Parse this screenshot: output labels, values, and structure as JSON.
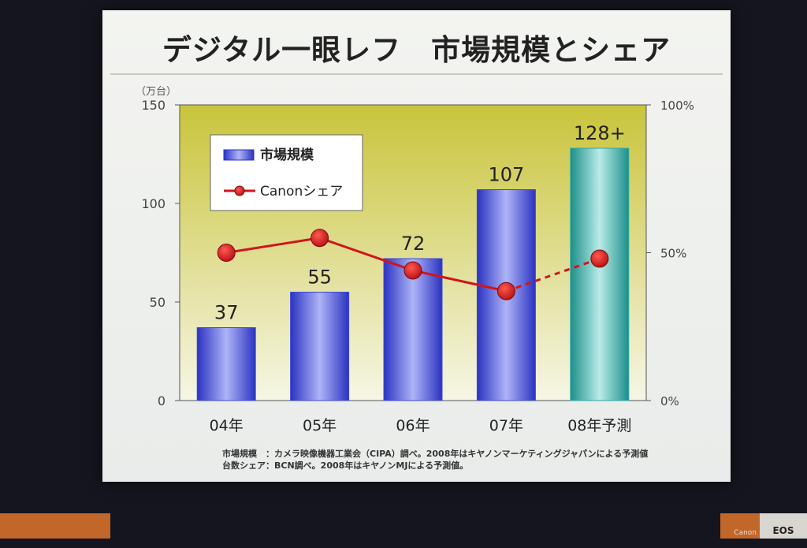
{
  "slide": {
    "title": "デジタル一眼レフ　市場規模とシェア",
    "notes": [
      "市場規模　：カメラ映像機器工業会（CIPA）調べ。2008年はキヤノンマーケティングジャパンによる予測値",
      "台数シェア：BCN調べ。2008年はキヤノンMJによる予測値。"
    ]
  },
  "booth": {
    "brand": "Canon",
    "logo": "EOS"
  },
  "chart_data": {
    "type": "bar",
    "categories": [
      "04年",
      "05年",
      "06年",
      "07年",
      "08年予測"
    ],
    "series": [
      {
        "name": "市場規模",
        "type": "bar",
        "axis": "left",
        "values": [
          37,
          55,
          72,
          107,
          128
        ],
        "data_labels": [
          "37",
          "55",
          "72",
          "107",
          "128+"
        ],
        "colors": [
          "#4048d6",
          "#4048d6",
          "#4048d6",
          "#4048d6",
          "#2ea8a3"
        ]
      },
      {
        "name": "Canonシェア",
        "type": "line",
        "axis": "right",
        "values": [
          50,
          55,
          44,
          37,
          48
        ],
        "dashed_last_segment": true,
        "color": "#d0151b"
      }
    ],
    "y_left": {
      "unit": "（万台）",
      "ticks": [
        "0",
        "50",
        "100",
        "150"
      ],
      "tick_values": [
        0,
        50,
        100,
        150
      ],
      "range": [
        0,
        150
      ]
    },
    "y_right": {
      "ticks": [
        "0%",
        "50%",
        "100%"
      ],
      "tick_values": [
        0,
        50,
        100
      ],
      "range": [
        0,
        100
      ]
    },
    "legend_position": "top-left",
    "plot_background": [
      "#c9c43a",
      "#f6f6e6"
    ]
  }
}
